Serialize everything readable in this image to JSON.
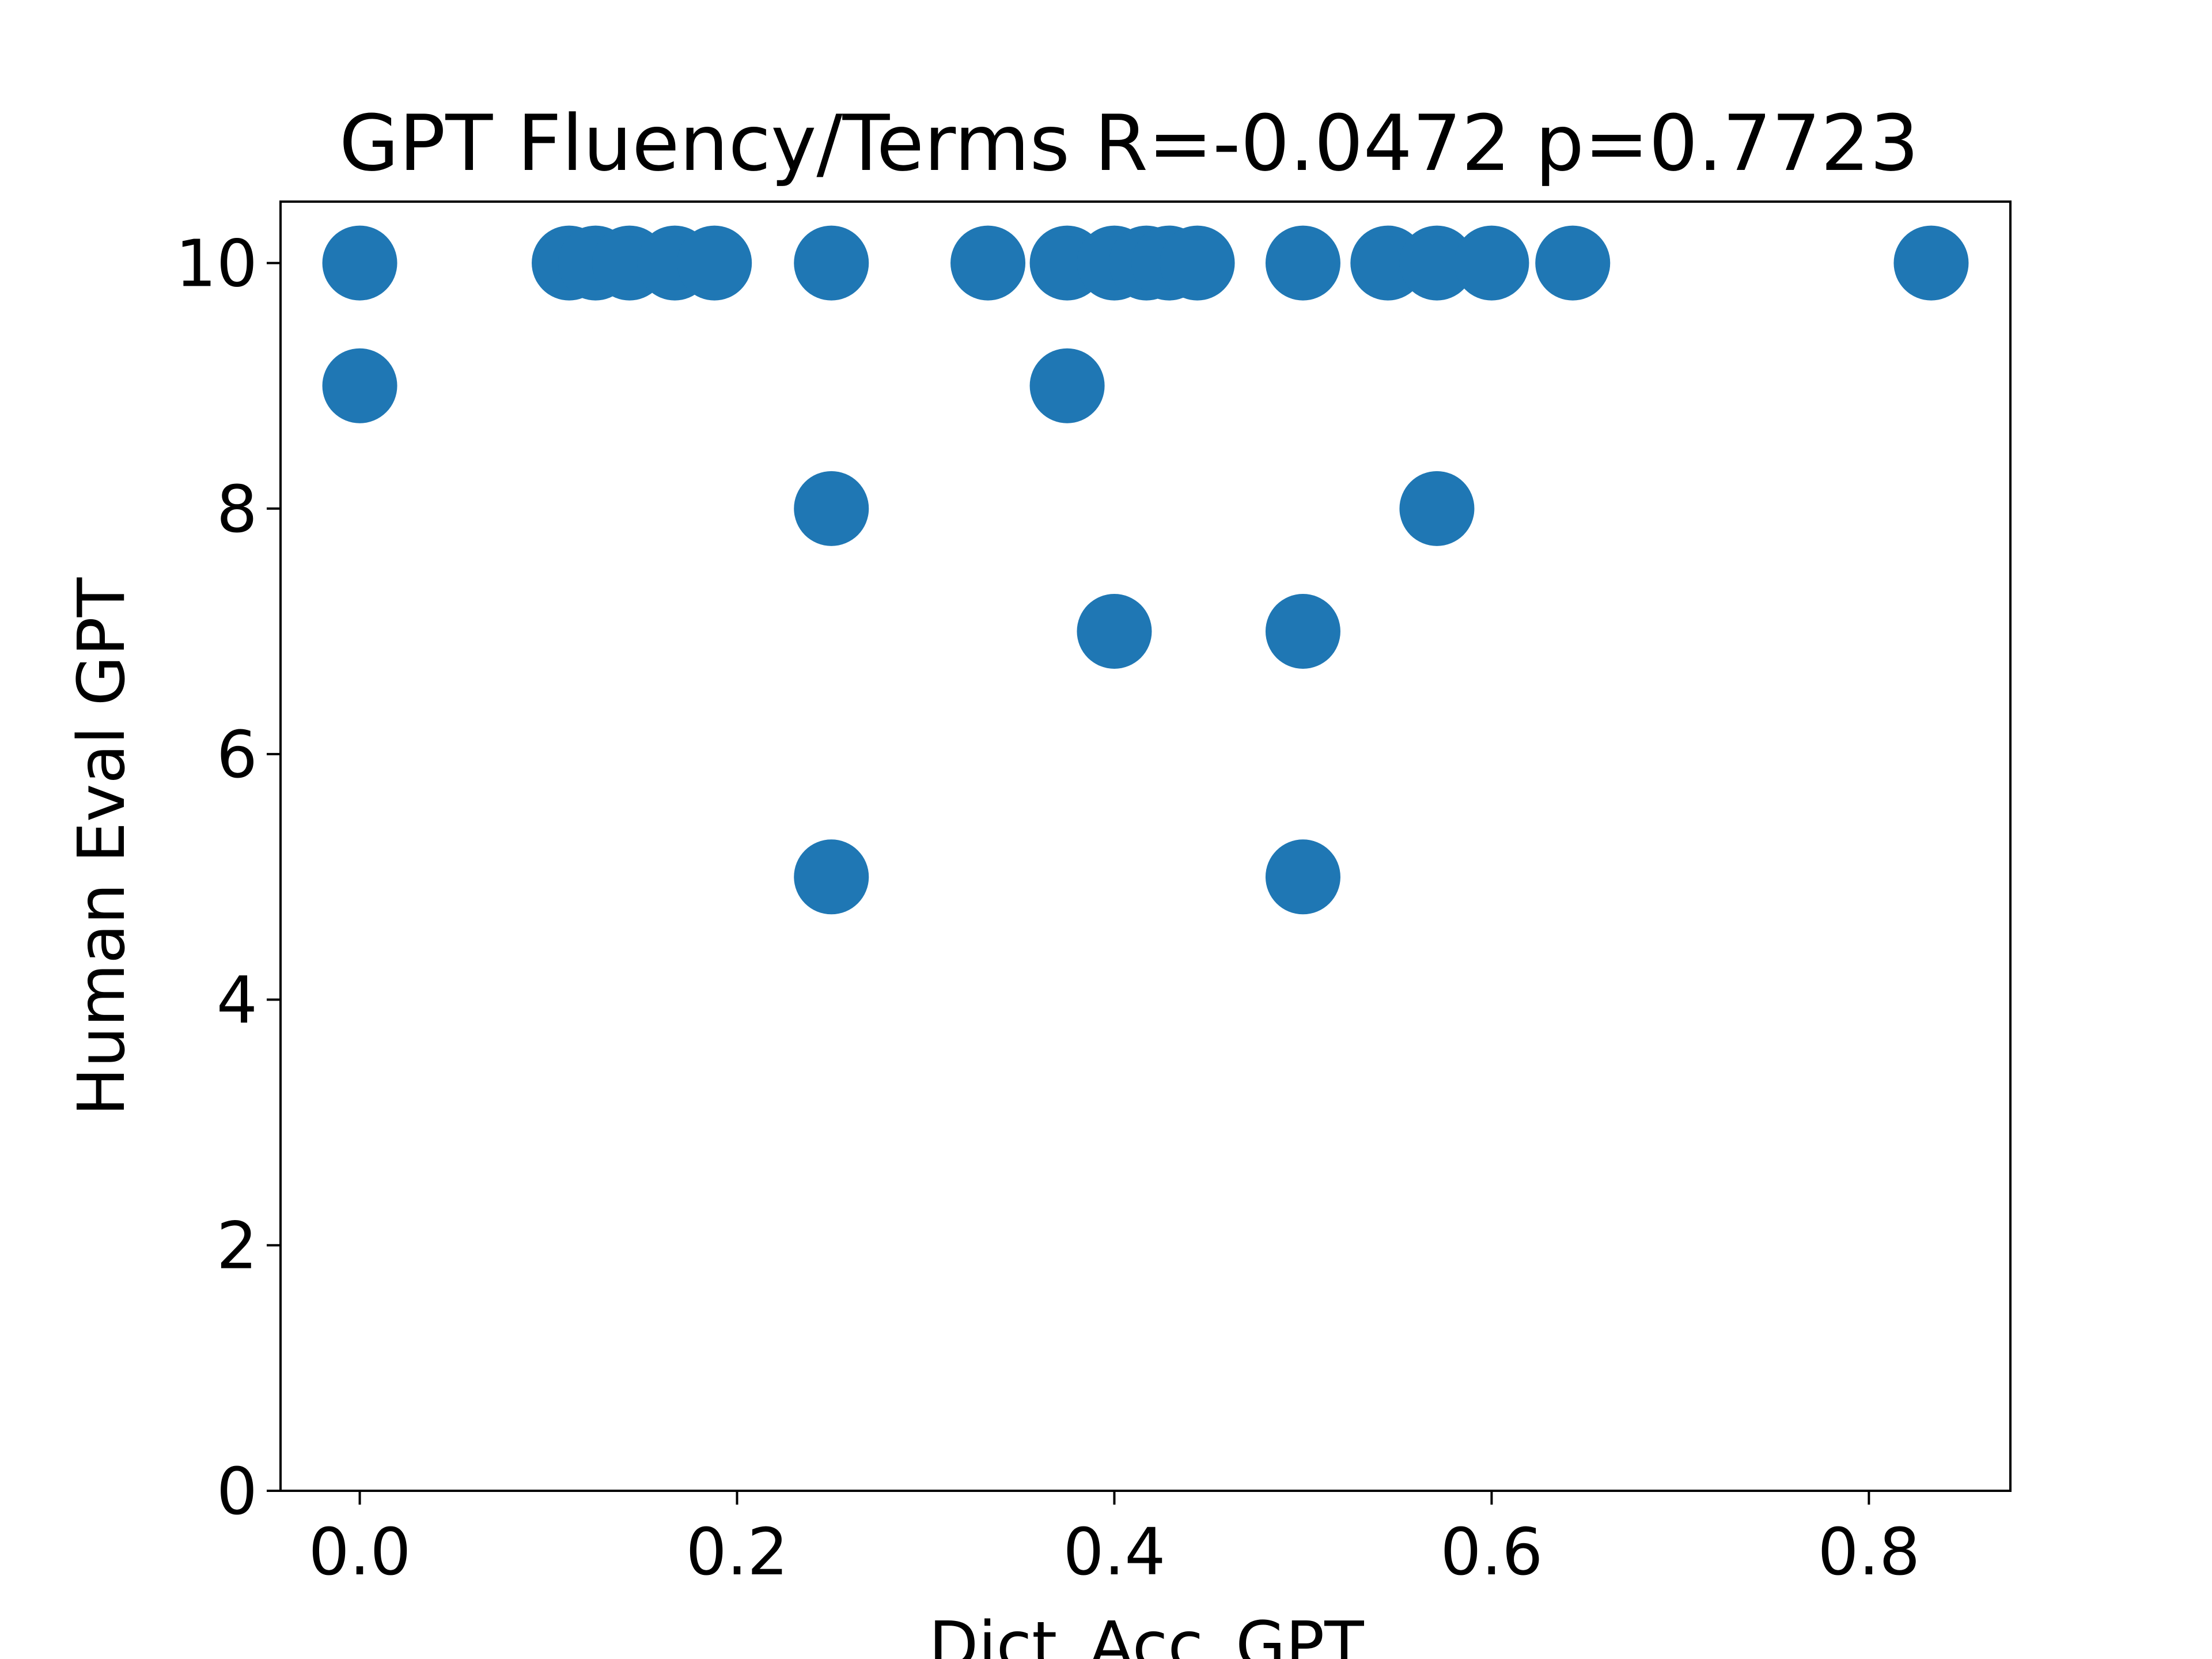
{
  "chart_data": {
    "type": "scatter",
    "title": "GPT Fluency/Terms R=-0.0472 p=0.7723",
    "xlabel": "Dict_Acc_GPT",
    "ylabel": "Human Eval GPT",
    "xlim": [
      -0.042,
      0.875
    ],
    "ylim": [
      0,
      10.5
    ],
    "x_ticks": [
      "0.0",
      "0.2",
      "0.4",
      "0.6",
      "0.8"
    ],
    "y_ticks": [
      "0",
      "2",
      "4",
      "6",
      "8",
      "10"
    ],
    "x_tick_values": [
      0.0,
      0.2,
      0.4,
      0.6,
      0.8
    ],
    "y_tick_values": [
      0,
      2,
      4,
      6,
      8,
      10
    ],
    "grid": false,
    "marker_color": "#1f77b4",
    "points": [
      {
        "x": 0.0,
        "y": 10
      },
      {
        "x": 0.0,
        "y": 9
      },
      {
        "x": 0.111,
        "y": 10
      },
      {
        "x": 0.125,
        "y": 10
      },
      {
        "x": 0.143,
        "y": 10
      },
      {
        "x": 0.167,
        "y": 10
      },
      {
        "x": 0.188,
        "y": 10
      },
      {
        "x": 0.25,
        "y": 10
      },
      {
        "x": 0.25,
        "y": 8
      },
      {
        "x": 0.25,
        "y": 5
      },
      {
        "x": 0.333,
        "y": 10
      },
      {
        "x": 0.375,
        "y": 10
      },
      {
        "x": 0.375,
        "y": 9
      },
      {
        "x": 0.4,
        "y": 10
      },
      {
        "x": 0.4,
        "y": 7
      },
      {
        "x": 0.417,
        "y": 10
      },
      {
        "x": 0.429,
        "y": 10
      },
      {
        "x": 0.444,
        "y": 10
      },
      {
        "x": 0.5,
        "y": 10
      },
      {
        "x": 0.5,
        "y": 7
      },
      {
        "x": 0.5,
        "y": 5
      },
      {
        "x": 0.545,
        "y": 10
      },
      {
        "x": 0.571,
        "y": 10
      },
      {
        "x": 0.571,
        "y": 8
      },
      {
        "x": 0.6,
        "y": 10
      },
      {
        "x": 0.643,
        "y": 10
      },
      {
        "x": 0.833,
        "y": 10
      }
    ]
  }
}
